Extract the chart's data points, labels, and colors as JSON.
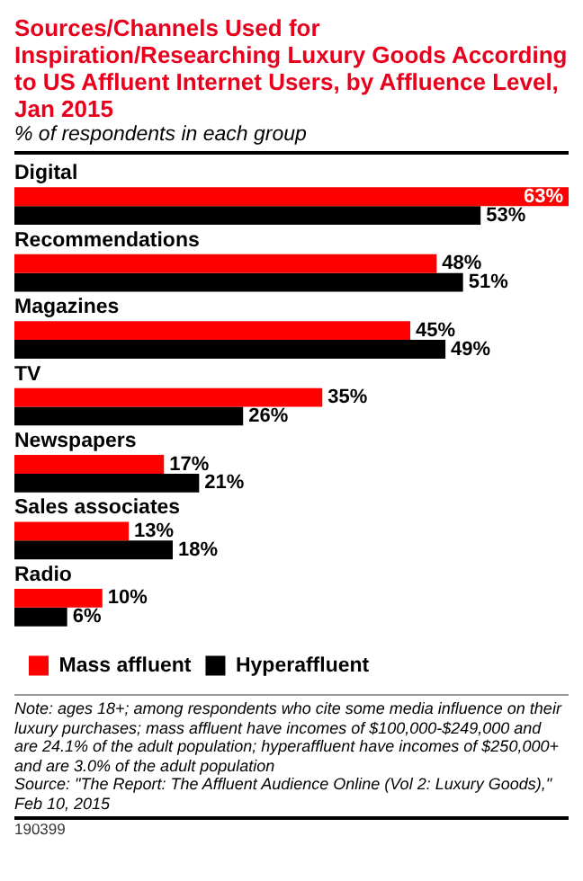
{
  "chart_data": {
    "type": "bar",
    "orientation": "horizontal",
    "title": "Sources/Channels Used for Inspiration/Researching Luxury Goods According to US Affluent Internet Users, by Affluence Level, Jan 2015",
    "subtitle": "% of respondents in each group",
    "categories": [
      "Digital",
      "Recommendations",
      "Magazines",
      "TV",
      "Newspapers",
      "Sales associates",
      "Radio"
    ],
    "series": [
      {
        "name": "Mass affluent",
        "color": "#ff0000",
        "values": [
          63,
          48,
          45,
          35,
          17,
          13,
          10
        ],
        "value_labels": [
          "63%",
          "48%",
          "45%",
          "35%",
          "17%",
          "13%",
          "10%"
        ]
      },
      {
        "name": "Hyperaffluent",
        "color": "#000000",
        "values": [
          53,
          51,
          49,
          26,
          21,
          18,
          6
        ],
        "value_labels": [
          "53%",
          "51%",
          "49%",
          "26%",
          "21%",
          "18%",
          "6%"
        ]
      }
    ],
    "legend": "bottom",
    "annotations": [
      "Note: ages 18+; among respondents who cite some media influence on their luxury purchases; mass affluent have incomes of $100,000-$249,000 and are 24.1% of the adult population; hyperaffluent have incomes of $250,000+ and are 3.0% of the adult population",
      "Source: \"The Report: The Affluent Audience Online (Vol 2: Luxury Goods),\" Feb 10, 2015",
      "190399"
    ]
  }
}
